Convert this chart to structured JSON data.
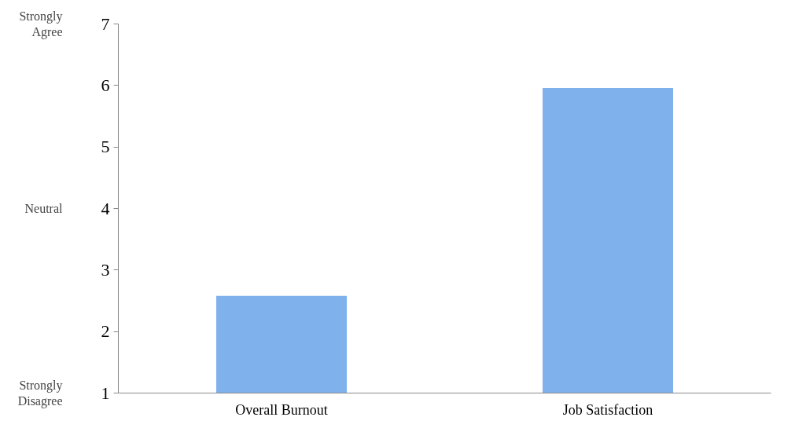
{
  "chart_data": {
    "type": "bar",
    "categories": [
      "Overall Burnout",
      "Job Satisfaction"
    ],
    "values": [
      2.58,
      5.96
    ],
    "color": "#7fb2ec",
    "ylim": [
      1,
      7
    ],
    "yticks": [
      1,
      2,
      3,
      4,
      5,
      6,
      7
    ],
    "grid": false,
    "annotations": [
      "Strongly Agree",
      "Neutral",
      "Strongly Disagree"
    ]
  }
}
